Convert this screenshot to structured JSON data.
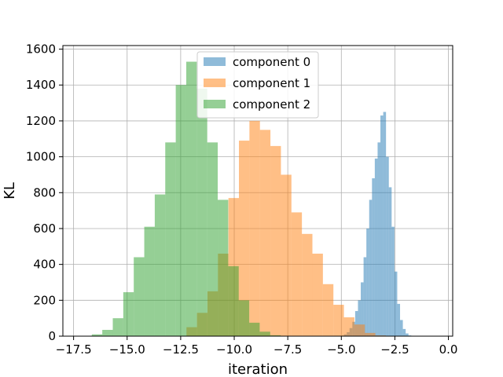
{
  "chart_data": {
    "type": "bar",
    "title": "",
    "xlabel": "iteration",
    "ylabel": "KL",
    "xlim": [
      -18.0,
      0.2
    ],
    "ylim": [
      0,
      1620
    ],
    "grid": true,
    "legend_position": "upper-center",
    "x_ticks": [
      {
        "value": -17.5,
        "label": "−17.5"
      },
      {
        "value": -15.0,
        "label": "−15.0"
      },
      {
        "value": -12.5,
        "label": "−12.5"
      },
      {
        "value": -10.0,
        "label": "−10.0"
      },
      {
        "value": -7.5,
        "label": "−7.5"
      },
      {
        "value": -5.0,
        "label": "−5.0"
      },
      {
        "value": -2.5,
        "label": "−2.5"
      },
      {
        "value": 0.0,
        "label": "0.0"
      }
    ],
    "y_ticks": [
      {
        "value": 0,
        "label": "0"
      },
      {
        "value": 200,
        "label": "200"
      },
      {
        "value": 400,
        "label": "400"
      },
      {
        "value": 600,
        "label": "600"
      },
      {
        "value": 800,
        "label": "800"
      },
      {
        "value": 1000,
        "label": "1000"
      },
      {
        "value": 1200,
        "label": "1200"
      },
      {
        "value": 1400,
        "label": "1400"
      },
      {
        "value": 1600,
        "label": "1600"
      }
    ],
    "series": [
      {
        "name": "component 0",
        "color": "#1f77b4",
        "opacity": 0.5,
        "bin_width": 0.131,
        "bin_start": -5.14,
        "counts": [
          1,
          3,
          10,
          22,
          45,
          80,
          140,
          200,
          300,
          440,
          600,
          760,
          880,
          990,
          1080,
          1230,
          1250,
          1000,
          830,
          610,
          360,
          180,
          90,
          40,
          15,
          4
        ]
      },
      {
        "name": "component 1",
        "color": "#ff7f0e",
        "opacity": 0.5,
        "bin_width": 0.49,
        "bin_start": -12.23,
        "counts": [
          50,
          130,
          250,
          460,
          770,
          1090,
          1200,
          1150,
          1060,
          900,
          690,
          570,
          460,
          290,
          175,
          105,
          65,
          18,
          4
        ]
      },
      {
        "name": "component 2",
        "color": "#2ca02c",
        "opacity": 0.5,
        "bin_width": 0.49,
        "bin_start": -16.65,
        "counts": [
          10,
          35,
          100,
          245,
          440,
          610,
          790,
          1080,
          1400,
          1530,
          1380,
          1080,
          760,
          390,
          200,
          75,
          25,
          5
        ]
      }
    ]
  }
}
